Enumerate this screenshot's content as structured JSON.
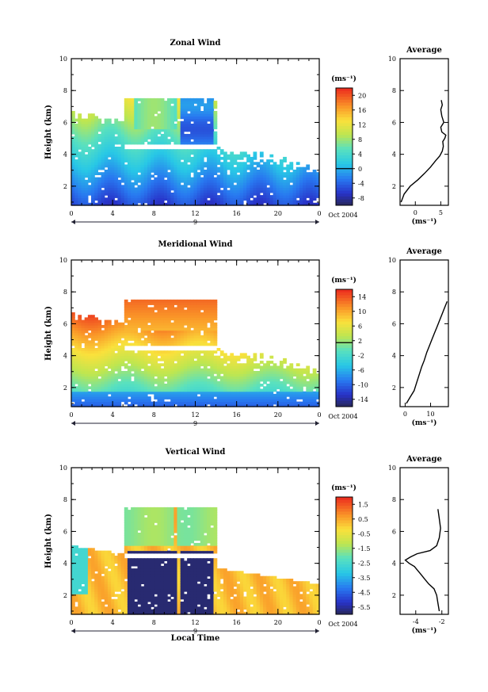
{
  "chart_data": [
    {
      "type": "heatmap",
      "title": "Zonal Wind",
      "ylabel": "Height (km)",
      "ylim": [
        0.8,
        10
      ],
      "yticks": [
        "2",
        "4",
        "6",
        "8",
        "10"
      ],
      "xlim": [
        0,
        24
      ],
      "xticks": [
        "0",
        "4",
        "8",
        "12",
        "16",
        "20",
        "0"
      ],
      "date_label": "9",
      "month_label": "Oct 2004",
      "colorbar": {
        "unit": "(ms⁻¹)",
        "range": [
          -10,
          22
        ],
        "ticks": [
          "20",
          "16",
          "12",
          "8",
          "4",
          "0",
          "-4",
          "-8"
        ],
        "contour": 0
      },
      "profile": {
        "title": "Average",
        "xlabel": "(ms⁻¹)",
        "xlim": [
          -3,
          6.5
        ],
        "xticks": [
          "0",
          "5"
        ],
        "yticks": [
          "2",
          "4",
          "6",
          "8",
          "10"
        ],
        "x": [
          -2.8,
          -2.2,
          -1.0,
          0.5,
          1.8,
          3.0,
          4.0,
          4.8,
          5.3,
          5.5,
          5.4,
          5.8,
          6.0,
          5.2,
          5.0,
          5.6,
          5.2,
          5.0,
          5.3,
          5.1
        ],
        "y": [
          1.0,
          1.5,
          2.0,
          2.4,
          2.8,
          3.2,
          3.6,
          3.9,
          4.2,
          4.5,
          4.8,
          5.0,
          5.2,
          5.4,
          5.7,
          6.0,
          6.4,
          6.8,
          7.1,
          7.4
        ]
      }
    },
    {
      "type": "heatmap",
      "title": "Meridional Wind",
      "ylabel": "Height (km)",
      "ylim": [
        0.8,
        10
      ],
      "yticks": [
        "2",
        "4",
        "6",
        "8",
        "10"
      ],
      "xlim": [
        0,
        24
      ],
      "xticks": [
        "0",
        "4",
        "8",
        "12",
        "16",
        "20",
        "0"
      ],
      "date_label": "9",
      "month_label": "Oct 2004",
      "colorbar": {
        "unit": "(ms⁻¹)",
        "range": [
          -16,
          17
        ],
        "ticks": [
          "14",
          "10",
          "6",
          "2",
          "-2",
          "-6",
          "-10",
          "-14"
        ],
        "contour": 2
      },
      "profile": {
        "title": "Average",
        "xlabel": "(ms⁻¹)",
        "xlim": [
          -2,
          17
        ],
        "xticks": [
          "0",
          "10"
        ],
        "yticks": [
          "2",
          "4",
          "6",
          "8",
          "10"
        ],
        "x": [
          0.5,
          2.0,
          3.5,
          4.5,
          5.5,
          6.5,
          7.5,
          8.5,
          9.5,
          10.5,
          11.5,
          12.5,
          13.5,
          14.5,
          15.5,
          16.5
        ],
        "y": [
          1.0,
          1.4,
          1.8,
          2.3,
          2.8,
          3.3,
          3.7,
          4.2,
          4.6,
          5.0,
          5.4,
          5.8,
          6.2,
          6.6,
          7.0,
          7.4
        ]
      }
    },
    {
      "type": "heatmap",
      "title": "Vertical Wind",
      "ylabel": "Height (km)",
      "xlabel": "Local Time",
      "ylim": [
        0.8,
        10
      ],
      "yticks": [
        "2",
        "4",
        "6",
        "8",
        "10"
      ],
      "xlim": [
        0,
        24
      ],
      "xticks": [
        "0",
        "4",
        "8",
        "12",
        "16",
        "20",
        "0"
      ],
      "date_label": "9",
      "month_label": "Oct 2004",
      "colorbar": {
        "unit": "(ms⁻¹)",
        "range": [
          -7,
          2.5
        ],
        "ticks": [
          "1.5",
          "0.5",
          "-0.5",
          "-1.5",
          "-2.5",
          "-3.5",
          "-4.5",
          "-5.5"
        ]
      },
      "profile": {
        "title": "Average",
        "xlabel": "(ms⁻¹)",
        "xlim": [
          -5.2,
          -1.5
        ],
        "xticks": [
          "-4",
          "-2"
        ],
        "yticks": [
          "2",
          "4",
          "6",
          "8",
          "10"
        ],
        "x": [
          -2.2,
          -2.3,
          -2.4,
          -2.6,
          -3.0,
          -3.3,
          -3.6,
          -3.9,
          -4.1,
          -4.5,
          -4.8,
          -4.4,
          -3.9,
          -2.9,
          -2.4,
          -2.2,
          -2.1,
          -2.2,
          -2.3
        ],
        "y": [
          1.0,
          1.5,
          2.0,
          2.4,
          2.7,
          3.0,
          3.3,
          3.6,
          3.8,
          4.0,
          4.2,
          4.4,
          4.6,
          4.8,
          5.1,
          5.6,
          6.2,
          6.8,
          7.4
        ]
      }
    }
  ]
}
